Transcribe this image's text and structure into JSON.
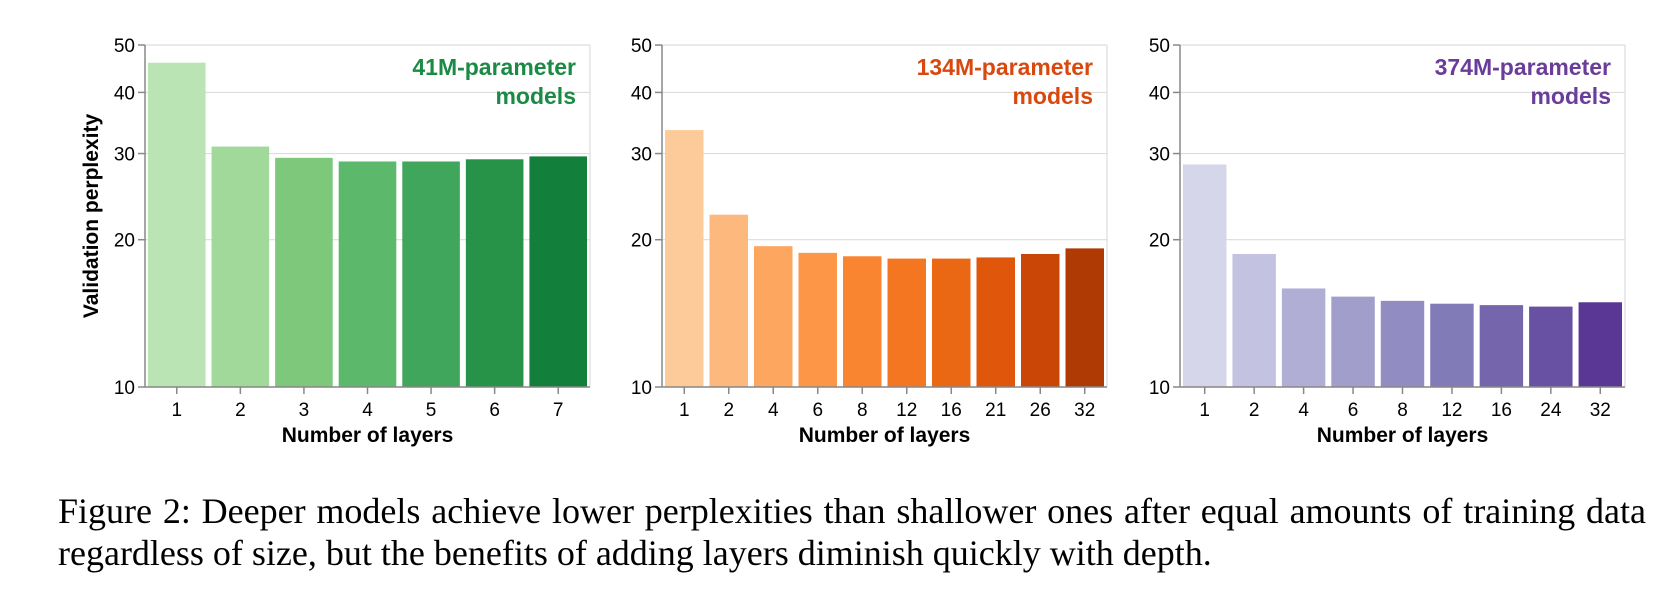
{
  "chart_data": [
    {
      "type": "bar",
      "title": "41M-parameter models",
      "title_lines": [
        "41M-parameter",
        "models"
      ],
      "title_color": "#1a8a45",
      "xlabel": "Number of layers",
      "ylabel": "Validation perplexity",
      "yscale": "log",
      "ylim": [
        10,
        50
      ],
      "yticks": [
        10,
        20,
        30,
        40,
        50
      ],
      "grid": true,
      "categories": [
        "1",
        "2",
        "3",
        "4",
        "5",
        "6",
        "7"
      ],
      "values": [
        46.0,
        31.0,
        29.4,
        28.9,
        28.9,
        29.2,
        29.6
      ],
      "colors": [
        "#bae4b3",
        "#a1d99b",
        "#7ec87c",
        "#5cb96b",
        "#3fa65b",
        "#269349",
        "#12803a"
      ]
    },
    {
      "type": "bar",
      "title": "134M-parameter models",
      "title_lines": [
        "134M-parameter",
        "models"
      ],
      "title_color": "#d9480f",
      "xlabel": "Number of layers",
      "ylabel": "",
      "yscale": "log",
      "ylim": [
        10,
        50
      ],
      "yticks": [
        10,
        20,
        30,
        40,
        50
      ],
      "grid": true,
      "categories": [
        "1",
        "2",
        "4",
        "6",
        "8",
        "12",
        "16",
        "21",
        "26",
        "32"
      ],
      "values": [
        33.5,
        22.5,
        19.4,
        18.8,
        18.5,
        18.3,
        18.3,
        18.4,
        18.7,
        19.2
      ],
      "colors": [
        "#fdcb99",
        "#fdb97d",
        "#fda65f",
        "#fd9647",
        "#f98531",
        "#f47620",
        "#ea6714",
        "#e0560b",
        "#ca4606",
        "#b03a04"
      ]
    },
    {
      "type": "bar",
      "title": "374M-parameter models",
      "title_lines": [
        "374M-parameter",
        "models"
      ],
      "title_color": "#6a3d9a",
      "xlabel": "Number of layers",
      "ylabel": "",
      "yscale": "log",
      "ylim": [
        10,
        50
      ],
      "yticks": [
        10,
        20,
        30,
        40,
        50
      ],
      "grid": true,
      "categories": [
        "1",
        "2",
        "4",
        "6",
        "8",
        "12",
        "16",
        "24",
        "32"
      ],
      "values": [
        28.5,
        18.7,
        15.9,
        15.3,
        15.0,
        14.8,
        14.7,
        14.6,
        14.9
      ],
      "colors": [
        "#d6d6ea",
        "#c3c2e0",
        "#b1aed6",
        "#a29ecb",
        "#918cc1",
        "#817bb7",
        "#7465ad",
        "#6851a3",
        "#5b3795"
      ]
    }
  ],
  "caption": "Figure 2:  Deeper models achieve lower perplexities than shallower ones after equal amounts of training data regardless of size, but the benefits of adding layers diminish quickly with depth."
}
